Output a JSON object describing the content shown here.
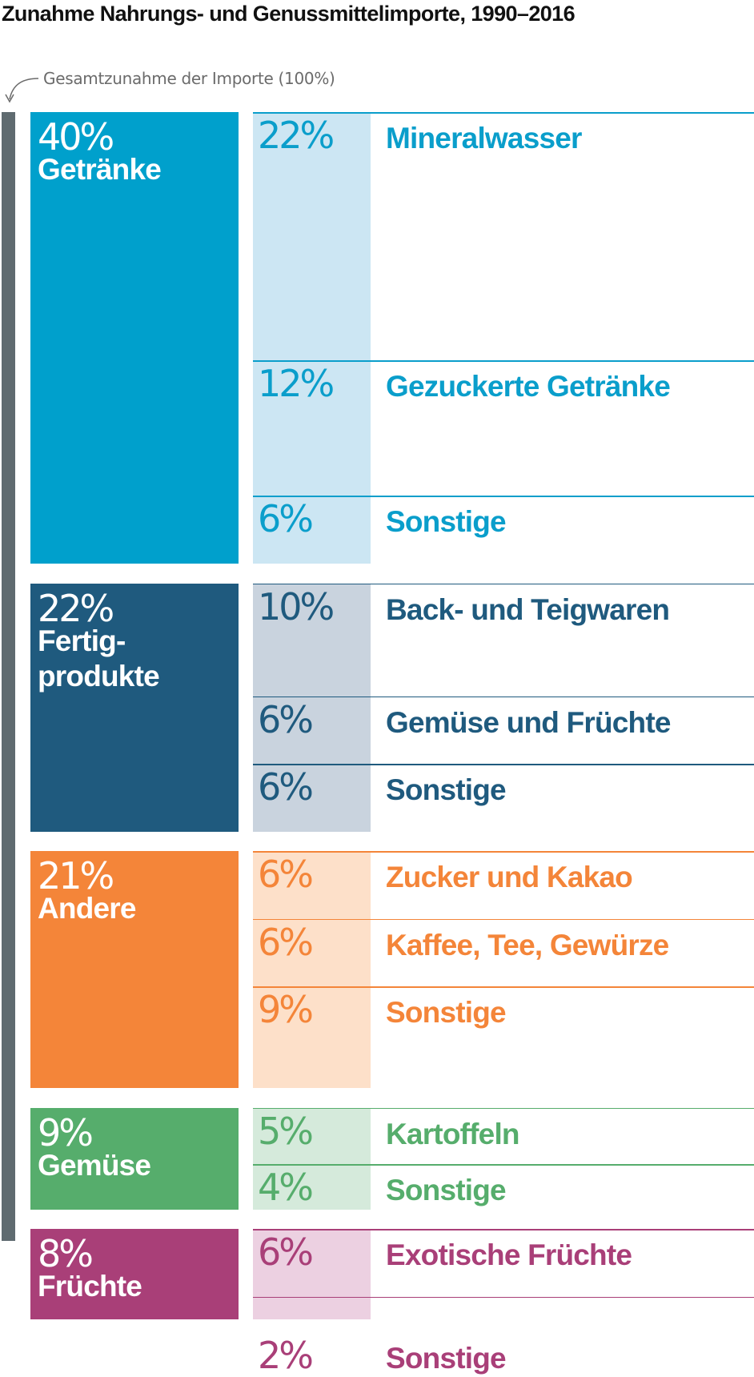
{
  "title": "Zunahme Nahrungs- und Genussmittelimporte, 1990–2016",
  "total_note": "Gesamtzunahme der Importe (100%)",
  "chart_data": {
    "type": "bar",
    "title": "Zunahme Nahrungs- und Genussmittelimporte, 1990–2016",
    "total_label": "Gesamtzunahme der Importe (100%)",
    "unit": "%",
    "categories": [
      {
        "name": "Getränke",
        "pct_label": "40%",
        "value": 40,
        "color": "#00a0cc",
        "light_color": "#cce6f3",
        "text_color": "#0a9ecb",
        "subcategories": [
          {
            "name": "Mineralwasser",
            "pct_label": "22%",
            "value": 22
          },
          {
            "name": "Gezuckerte Getränke",
            "pct_label": "12%",
            "value": 12
          },
          {
            "name": "Sonstige",
            "pct_label": "6%",
            "value": 6
          }
        ]
      },
      {
        "name": "Fertig-\nprodukte",
        "pct_label": "22%",
        "value": 22,
        "color": "#1f5a7e",
        "light_color": "#c9d3de",
        "text_color": "#1f5a7e",
        "subcategories": [
          {
            "name": "Back- und Teigwaren",
            "pct_label": "10%",
            "value": 10
          },
          {
            "name": "Gemüse und Früchte",
            "pct_label": "6%",
            "value": 6
          },
          {
            "name": "Sonstige",
            "pct_label": "6%",
            "value": 6
          }
        ]
      },
      {
        "name": "Andere",
        "pct_label": "21%",
        "value": 21,
        "color": "#f48539",
        "light_color": "#fde0c9",
        "text_color": "#f48539",
        "subcategories": [
          {
            "name": "Zucker und Kakao",
            "pct_label": "6%",
            "value": 6
          },
          {
            "name": "Kaffee, Tee, Gewürze",
            "pct_label": "6%",
            "value": 6
          },
          {
            "name": "Sonstige",
            "pct_label": "9%",
            "value": 9
          }
        ]
      },
      {
        "name": "Gemüse",
        "pct_label": "9%",
        "value": 9,
        "color": "#56ad6c",
        "light_color": "#d5eadb",
        "text_color": "#56ad6c",
        "subcategories": [
          {
            "name": "Kartoffeln",
            "pct_label": "5%",
            "value": 5
          },
          {
            "name": "Sonstige",
            "pct_label": "4%",
            "value": 4
          }
        ]
      },
      {
        "name": "Früchte",
        "pct_label": "8%",
        "value": 8,
        "color": "#a93f78",
        "light_color": "#ecd0e1",
        "text_color": "#a93f78",
        "subcategories": [
          {
            "name": "Exotische Früchte",
            "pct_label": "6%",
            "value": 6
          },
          {
            "name": "Sonstige",
            "pct_label": "2%",
            "value": 2
          }
        ]
      }
    ]
  }
}
